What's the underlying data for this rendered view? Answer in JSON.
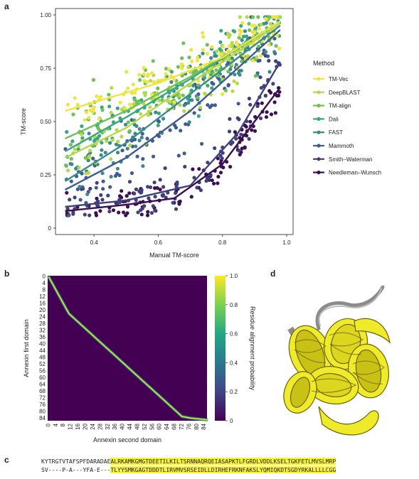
{
  "panels": {
    "a": "a",
    "b": "b",
    "c": "c",
    "d": "d"
  },
  "chart_data": [
    {
      "type": "scatter",
      "panel": "a",
      "xlabel": "Manual TM-score",
      "ylabel": "TM-score",
      "xlim": [
        0.28,
        1.02
      ],
      "ylim": [
        -0.03,
        1.03
      ],
      "xticks": [
        0.4,
        0.6,
        0.8,
        1.0
      ],
      "yticks": [
        0,
        0.25,
        0.5,
        0.75,
        1.0
      ],
      "xtick_labels": [
        "0.4",
        "0.6",
        "0.8",
        "1.0"
      ],
      "ytick_labels": [
        "0",
        "0.25",
        "0.50",
        "0.75",
        "1.00"
      ],
      "grid": false,
      "legend_title": "Method",
      "legend_position": "right",
      "series": [
        {
          "name": "TM-Vec",
          "color": "#f0e442",
          "fit": [
            [
              0.31,
              0.55
            ],
            [
              0.6,
              0.68
            ],
            [
              0.8,
              0.8
            ],
            [
              0.98,
              0.97
            ]
          ],
          "spread": 0.06
        },
        {
          "name": "DeepBLAST",
          "color": "#b5d94a",
          "fit": [
            [
              0.31,
              0.33
            ],
            [
              0.5,
              0.47
            ],
            [
              0.7,
              0.68
            ],
            [
              0.98,
              0.96
            ]
          ],
          "spread": 0.07
        },
        {
          "name": "TM-align",
          "color": "#6cc257",
          "fit": [
            [
              0.31,
              0.42
            ],
            [
              0.5,
              0.55
            ],
            [
              0.7,
              0.71
            ],
            [
              0.98,
              0.97
            ]
          ],
          "spread": 0.07
        },
        {
          "name": "Dali",
          "color": "#3aa681",
          "fit": [
            [
              0.31,
              0.36
            ],
            [
              0.5,
              0.52
            ],
            [
              0.7,
              0.7
            ],
            [
              0.98,
              0.97
            ]
          ],
          "spread": 0.07
        },
        {
          "name": "FAST",
          "color": "#3b8a8c",
          "fit": [
            [
              0.31,
              0.22
            ],
            [
              0.5,
              0.4
            ],
            [
              0.7,
              0.63
            ],
            [
              0.98,
              0.95
            ]
          ],
          "spread": 0.07
        },
        {
          "name": "Mammoth",
          "color": "#3e5c8f",
          "fit": [
            [
              0.31,
              0.18
            ],
            [
              0.5,
              0.33
            ],
            [
              0.7,
              0.55
            ],
            [
              0.98,
              0.93
            ]
          ],
          "spread": 0.07
        },
        {
          "name": "Smith–Waterman",
          "color": "#40407a",
          "fit": [
            [
              0.31,
              0.1
            ],
            [
              0.5,
              0.13
            ],
            [
              0.7,
              0.2
            ],
            [
              0.85,
              0.45
            ],
            [
              0.98,
              0.78
            ]
          ],
          "spread": 0.05
        },
        {
          "name": "Needleman–Wunsch",
          "color": "#3b0f52",
          "fit": [
            [
              0.31,
              0.08
            ],
            [
              0.5,
              0.11
            ],
            [
              0.65,
              0.14
            ],
            [
              0.8,
              0.3
            ],
            [
              0.98,
              0.66
            ]
          ],
          "spread": 0.04
        }
      ]
    },
    {
      "type": "heatmap",
      "panel": "b",
      "xlabel": "Annexin second domain",
      "ylabel": "Annexin first domain",
      "colorbar_label": "Residue alignment probability",
      "colorbar_ticks": [
        "0",
        "0.2",
        "0.4",
        "0.6",
        "0.8",
        "1.0"
      ],
      "colorbar_range": [
        0,
        1.0
      ],
      "x_tick_labels": [
        "0",
        "4",
        "8",
        "12",
        "16",
        "20",
        "24",
        "28",
        "32",
        "36",
        "40",
        "44",
        "48",
        "52",
        "56",
        "60",
        "64",
        "68",
        "72",
        "76",
        "80",
        "84"
      ],
      "y_tick_labels": [
        "0",
        "4",
        "8",
        "12",
        "16",
        "20",
        "24",
        "28",
        "32",
        "36",
        "40",
        "44",
        "48",
        "52",
        "56",
        "60",
        "64",
        "68",
        "72",
        "76",
        "80",
        "84"
      ],
      "size": [
        86,
        86
      ],
      "alignment_path": [
        [
          0,
          0
        ],
        [
          2,
          1
        ],
        [
          4,
          2
        ],
        [
          8,
          4
        ],
        [
          12,
          6
        ],
        [
          18,
          9
        ],
        [
          22,
          11
        ],
        [
          25,
          14
        ],
        [
          30,
          19
        ],
        [
          40,
          29
        ],
        [
          50,
          39
        ],
        [
          60,
          49
        ],
        [
          70,
          59
        ],
        [
          80,
          69
        ],
        [
          83,
          72
        ],
        [
          84,
          77
        ],
        [
          85,
          86
        ]
      ]
    }
  ],
  "alignment": {
    "seq1_unaligned": "KYTRGTVTAFSPFDARADAE",
    "seq1_aligned": "ALRKAMKGMGTDEETILKILTSRNNAQRQEIASAPKTLFGRDLVDDLKSELTGKFETLMVSLMRP",
    "seq2_unaligned": "SV----P-A---YFA-E---",
    "seq2_aligned": "TLYYSMKGAGTDDDTLIRVMVSRSEIDLLDIRHEFRKNFAKSLYQMIQKDTSGDYRKALLLLCGG"
  },
  "structure": {
    "colors": {
      "helix": "#f0eb2a",
      "coil": "#9a9a9a"
    }
  }
}
